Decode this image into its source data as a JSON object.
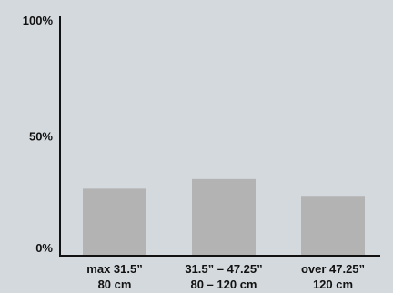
{
  "chart_data": {
    "type": "bar",
    "categories": [
      [
        "max 31.5”",
        "80 cm"
      ],
      [
        "31.5” – 47.25”",
        "80 – 120 cm"
      ],
      [
        "over 47.25”",
        "120 cm"
      ]
    ],
    "values": [
      28,
      32,
      25
    ],
    "ylim": [
      0,
      100
    ],
    "yticks": [
      {
        "value": 0,
        "label": "0%"
      },
      {
        "value": 50,
        "label": "50%"
      },
      {
        "value": 100,
        "label": "100%"
      }
    ],
    "title": "",
    "xlabel": "",
    "ylabel": "",
    "grid": false,
    "colors": {
      "background": "#d4d9dd",
      "bar": "#b3b3b3",
      "axis": "#111111",
      "text": "#111111"
    }
  }
}
